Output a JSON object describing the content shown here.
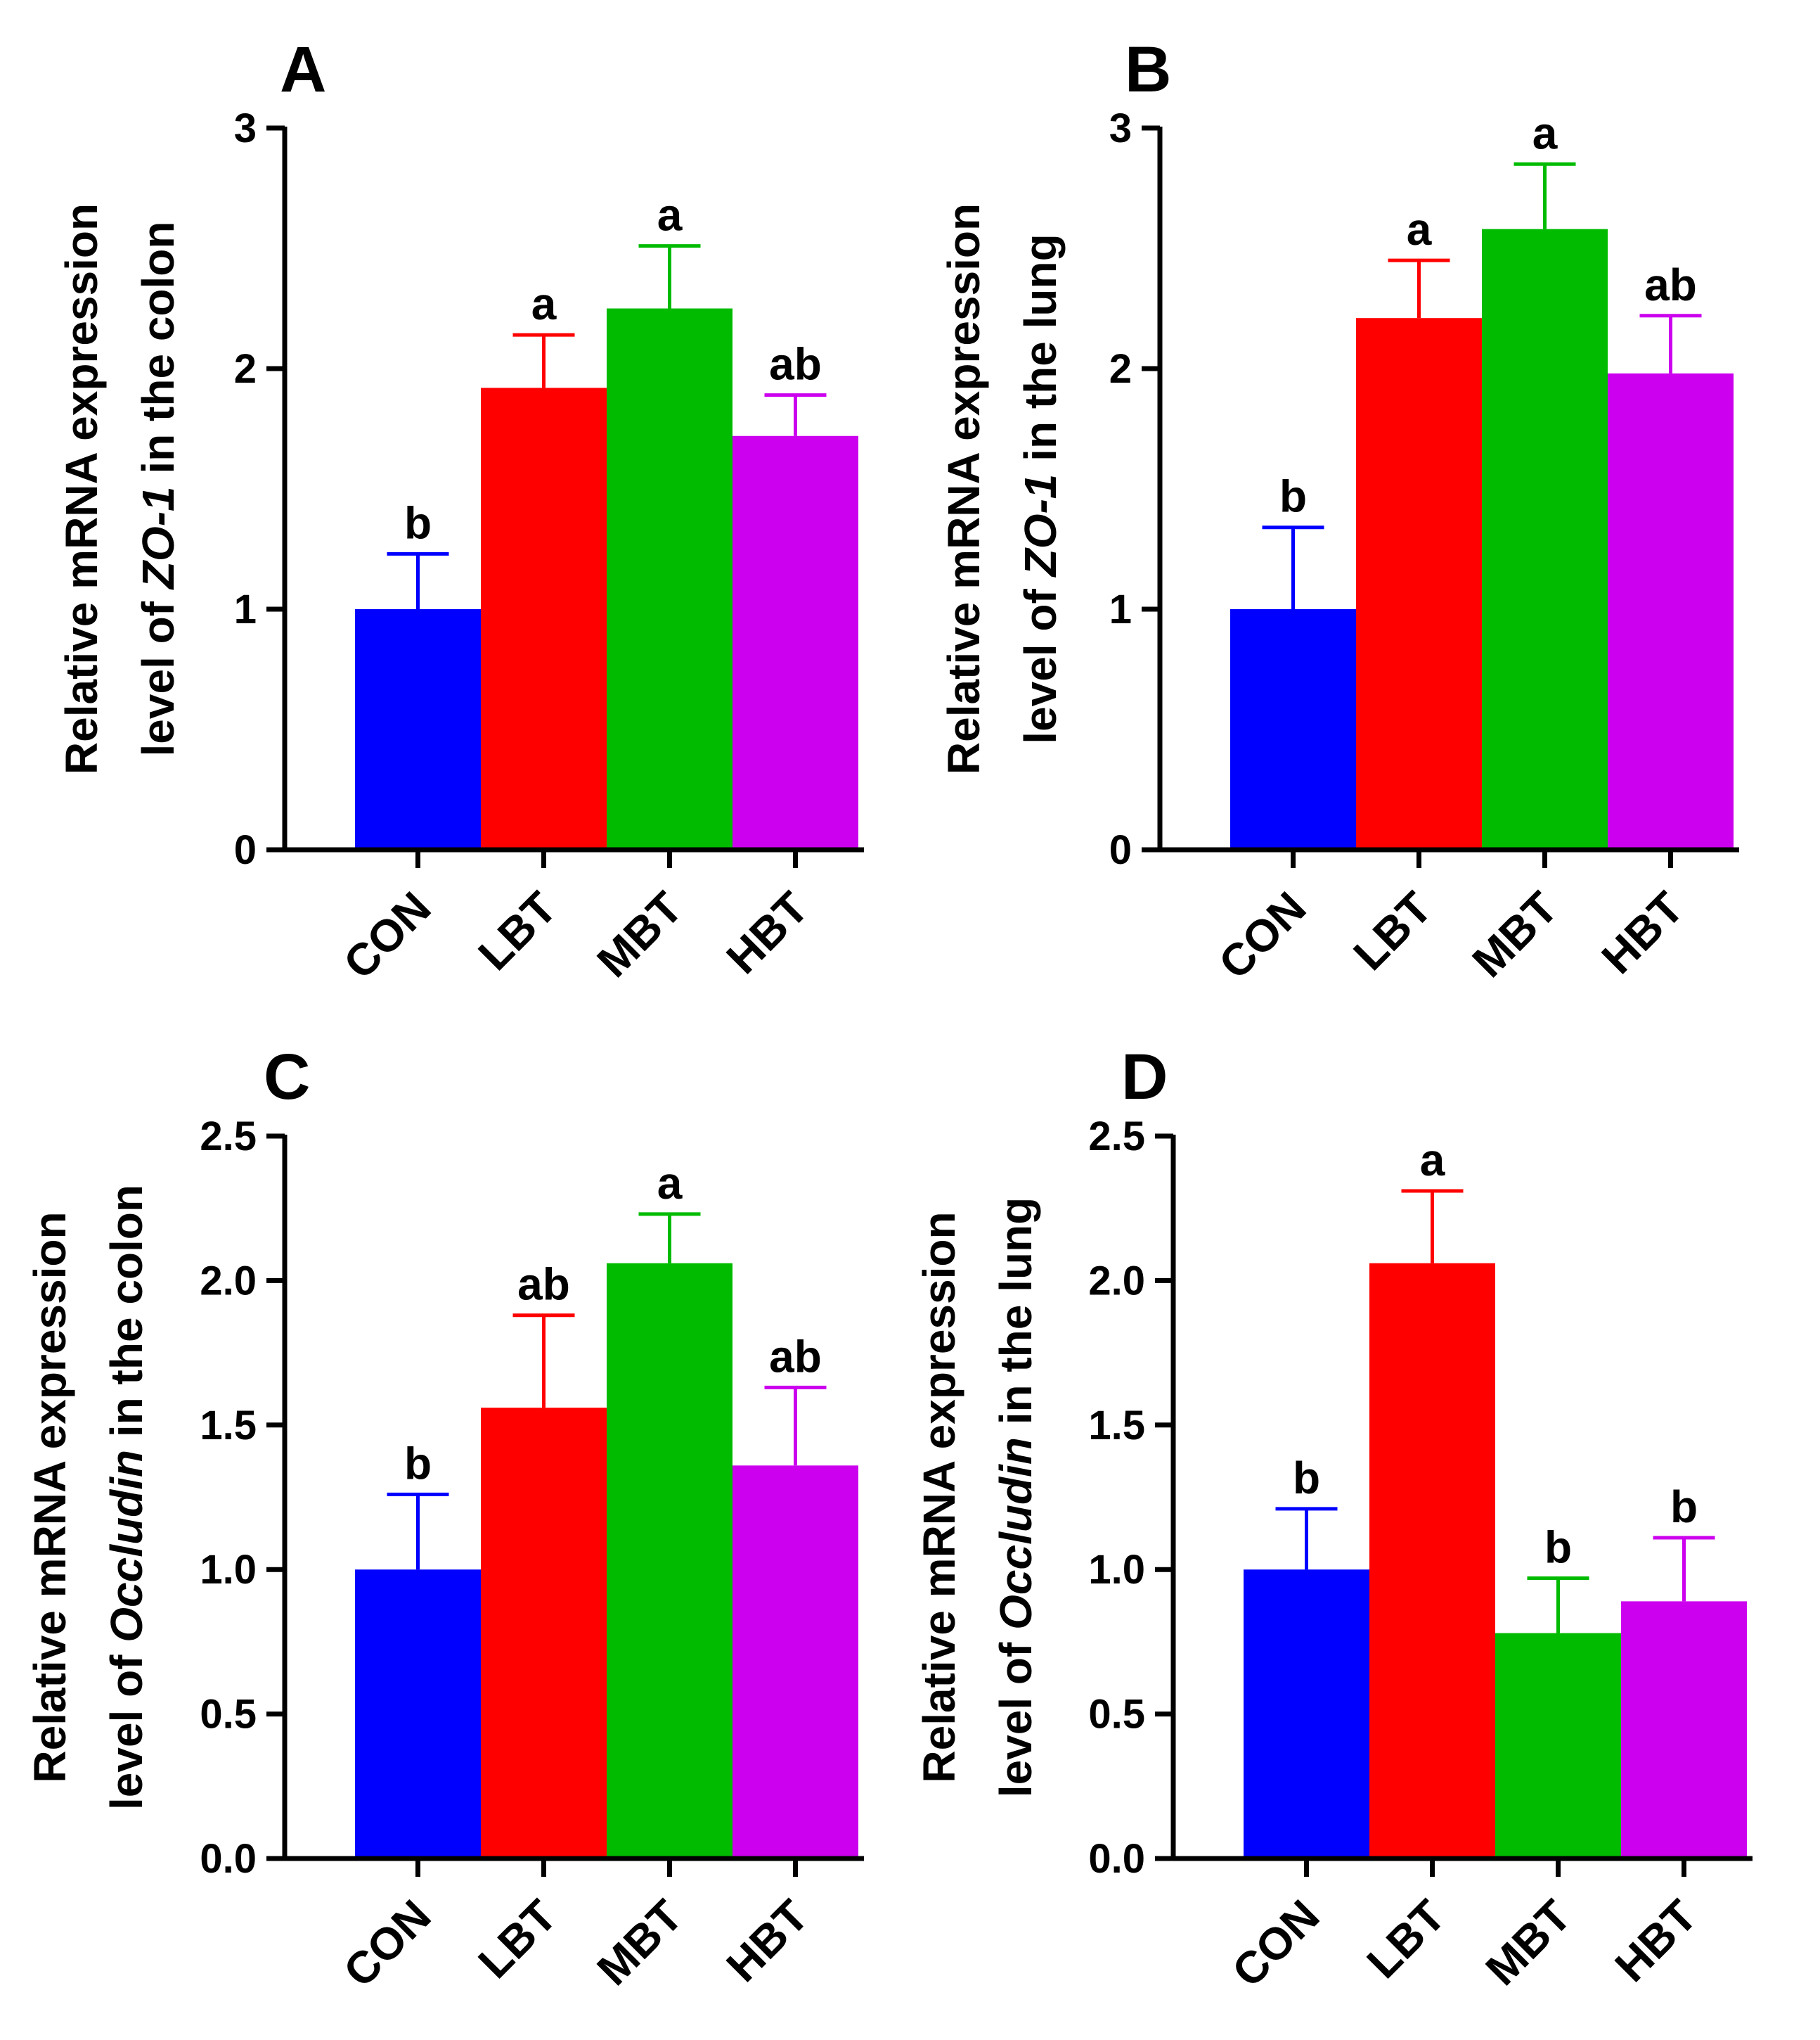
{
  "chart_data": [
    {
      "panel": "A",
      "type": "bar",
      "categories": [
        "CON",
        "LBT",
        "MBT",
        "HBT"
      ],
      "values": [
        1.0,
        1.92,
        2.25,
        1.72
      ],
      "errors": [
        0.23,
        0.22,
        0.26,
        0.17
      ],
      "letters": [
        "b",
        "a",
        "a",
        "ab"
      ],
      "ylabel_line1": "Relative mRNA expression",
      "ylabel_line2_pre": "level of ",
      "ylabel_gene": "ZO-1",
      "ylabel_line2_post": " in the colon",
      "ylim": [
        0,
        3
      ],
      "ticks": [
        0,
        1,
        2,
        3
      ],
      "tick_labels": [
        "0",
        "1",
        "2",
        "3"
      ]
    },
    {
      "panel": "B",
      "type": "bar",
      "categories": [
        "CON",
        "LBT",
        "MBT",
        "HBT"
      ],
      "values": [
        1.0,
        2.21,
        2.58,
        1.98
      ],
      "errors": [
        0.34,
        0.24,
        0.27,
        0.24
      ],
      "letters": [
        "b",
        "a",
        "a",
        "ab"
      ],
      "ylabel_line1": "Relative mRNA expression",
      "ylabel_line2_pre": "level of ",
      "ylabel_gene": "ZO-1",
      "ylabel_line2_post": " in the lung",
      "ylim": [
        0,
        3
      ],
      "ticks": [
        0,
        1,
        2,
        3
      ],
      "tick_labels": [
        "0",
        "1",
        "2",
        "3"
      ]
    },
    {
      "panel": "C",
      "type": "bar",
      "categories": [
        "CON",
        "LBT",
        "MBT",
        "HBT"
      ],
      "values": [
        1.0,
        1.56,
        2.06,
        1.36
      ],
      "errors": [
        0.26,
        0.32,
        0.17,
        0.27
      ],
      "letters": [
        "b",
        "ab",
        "a",
        "ab"
      ],
      "ylabel_line1": "Relative mRNA expression",
      "ylabel_line2_pre": "level of ",
      "ylabel_gene": "Occludin",
      "ylabel_line2_post": " in the colon",
      "ylim": [
        0,
        2.5
      ],
      "ticks": [
        0,
        0.5,
        1.0,
        1.5,
        2.0,
        2.5
      ],
      "tick_labels": [
        "0.0",
        "0.5",
        "1.0",
        "1.5",
        "2.0",
        "2.5"
      ]
    },
    {
      "panel": "D",
      "type": "bar",
      "categories": [
        "CON",
        "LBT",
        "MBT",
        "HBT"
      ],
      "values": [
        1.0,
        2.06,
        0.78,
        0.89
      ],
      "errors": [
        0.21,
        0.25,
        0.19,
        0.22
      ],
      "letters": [
        "b",
        "a",
        "b",
        "b"
      ],
      "ylabel_line1": "Relative mRNA expression",
      "ylabel_line2_pre": "level of ",
      "ylabel_gene": "Occludin",
      "ylabel_line2_post": " in the lung",
      "ylim": [
        0,
        2.5
      ],
      "ticks": [
        0,
        0.5,
        1.0,
        1.5,
        2.0,
        2.5
      ],
      "tick_labels": [
        "0.0",
        "0.5",
        "1.0",
        "1.5",
        "2.0",
        "2.5"
      ]
    }
  ],
  "colors": {
    "CON": "#0000ff",
    "LBT": "#ff0000",
    "MBT": "#00bb00",
    "HBT": "#cc00ee"
  }
}
